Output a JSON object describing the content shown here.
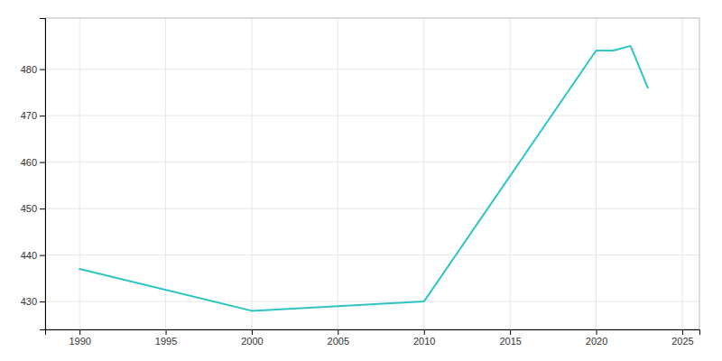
{
  "chart_data": {
    "type": "line",
    "x": [
      1990,
      2000,
      2005,
      2010,
      2020,
      2021,
      2022,
      2023
    ],
    "values": [
      437,
      428,
      429,
      430,
      484,
      484,
      485,
      476
    ],
    "color": "#2ec4c4",
    "xlim": [
      1988,
      2026
    ],
    "ylim": [
      424,
      491
    ],
    "xticks": [
      1990,
      1995,
      2000,
      2005,
      2010,
      2015,
      2020,
      2025
    ],
    "yticks": [
      430,
      440,
      450,
      460,
      470,
      480
    ],
    "grid": true
  }
}
